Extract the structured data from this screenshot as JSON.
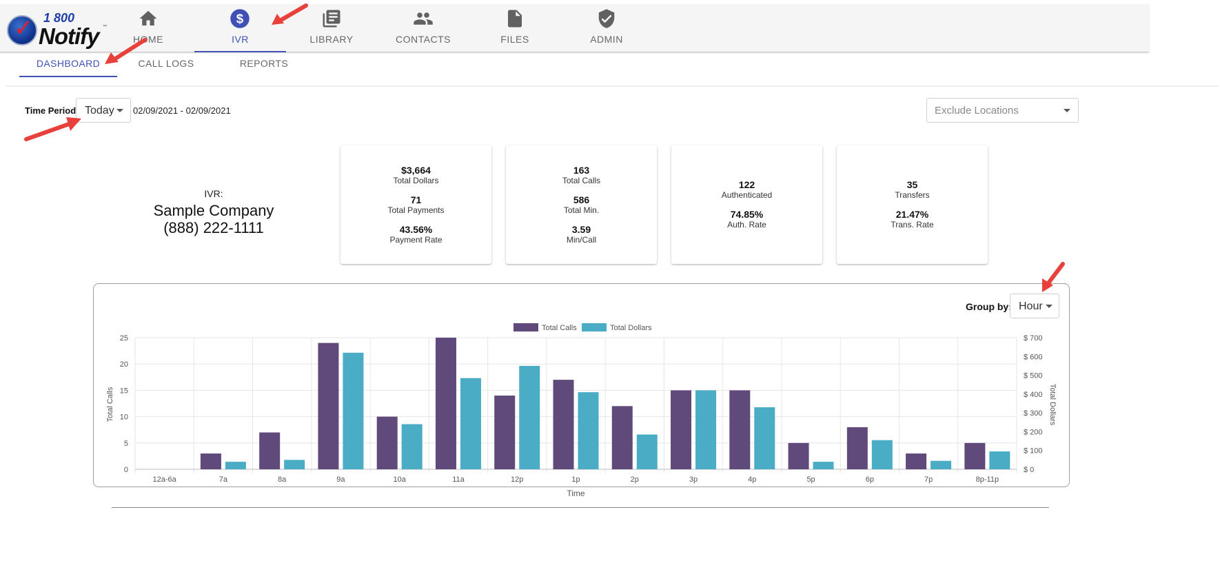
{
  "logo": {
    "top_text": "1 800",
    "main_text": "Notify",
    "tm": "™"
  },
  "nav": [
    {
      "label": "HOME",
      "icon": "home-icon",
      "active": false
    },
    {
      "label": "IVR",
      "icon": "dollar-circle-icon",
      "active": true
    },
    {
      "label": "LIBRARY",
      "icon": "library-icon",
      "active": false
    },
    {
      "label": "CONTACTS",
      "icon": "contacts-icon",
      "active": false
    },
    {
      "label": "FILES",
      "icon": "file-icon",
      "active": false
    },
    {
      "label": "ADMIN",
      "icon": "shield-check-icon",
      "active": false
    }
  ],
  "subtabs": [
    {
      "label": "DASHBOARD",
      "active": true
    },
    {
      "label": "CALL LOGS",
      "active": false
    },
    {
      "label": "REPORTS",
      "active": false
    }
  ],
  "filters": {
    "time_period_label": "Time Period:",
    "time_period_value": "Today",
    "date_range": "02/09/2021 - 02/09/2021",
    "exclude_locations_placeholder": "Exclude Locations"
  },
  "ivr": {
    "label": "IVR:",
    "company": "Sample Company",
    "phone": "(888) 222-1111"
  },
  "cards": [
    {
      "stats": [
        {
          "value": "$3,664",
          "label": "Total Dollars"
        },
        {
          "value": "71",
          "label": "Total Payments"
        },
        {
          "value": "43.56%",
          "label": "Payment Rate"
        }
      ]
    },
    {
      "stats": [
        {
          "value": "163",
          "label": "Total Calls"
        },
        {
          "value": "586",
          "label": "Total Min."
        },
        {
          "value": "3.59",
          "label": "Min/Call"
        }
      ]
    },
    {
      "stats": [
        {
          "value": "122",
          "label": "Authenticated"
        },
        {
          "value": "74.85%",
          "label": "Auth. Rate"
        }
      ]
    },
    {
      "stats": [
        {
          "value": "35",
          "label": "Transfers"
        },
        {
          "value": "21.47%",
          "label": "Trans. Rate"
        }
      ]
    }
  ],
  "group_by": {
    "label": "Group by:",
    "value": "Hour"
  },
  "colors": {
    "accent": "#3f51b5",
    "total_calls": "#60497b",
    "total_dollars": "#4bacc6",
    "arrow": "#e8403a"
  },
  "chart_data": {
    "type": "bar",
    "xlabel": "Time",
    "ylabel": "Total Calls",
    "y2label": "Total Dollars",
    "ylim": [
      0,
      25
    ],
    "y2lim": [
      0,
      700
    ],
    "yticks": [
      "0",
      "5",
      "10",
      "15",
      "20",
      "25"
    ],
    "y2ticks": [
      "$ 0",
      "$ 100",
      "$ 200",
      "$ 300",
      "$ 400",
      "$ 500",
      "$ 600",
      "$ 700"
    ],
    "categories": [
      "12a-6a",
      "7a",
      "8a",
      "9a",
      "10a",
      "11a",
      "12p",
      "1p",
      "2p",
      "3p",
      "4p",
      "5p",
      "6p",
      "7p",
      "8p-11p"
    ],
    "legend_position": "top-center",
    "grid": true,
    "series": [
      {
        "name": "Total Calls",
        "axis": "left",
        "values": [
          0,
          3,
          7,
          24,
          10,
          25,
          14,
          17,
          12,
          15,
          15,
          5,
          8,
          3,
          5
        ]
      },
      {
        "name": "Total Dollars",
        "axis": "right",
        "values": [
          0,
          40,
          50,
          620,
          240,
          485,
          550,
          410,
          185,
          420,
          330,
          40,
          155,
          45,
          95
        ]
      }
    ]
  }
}
